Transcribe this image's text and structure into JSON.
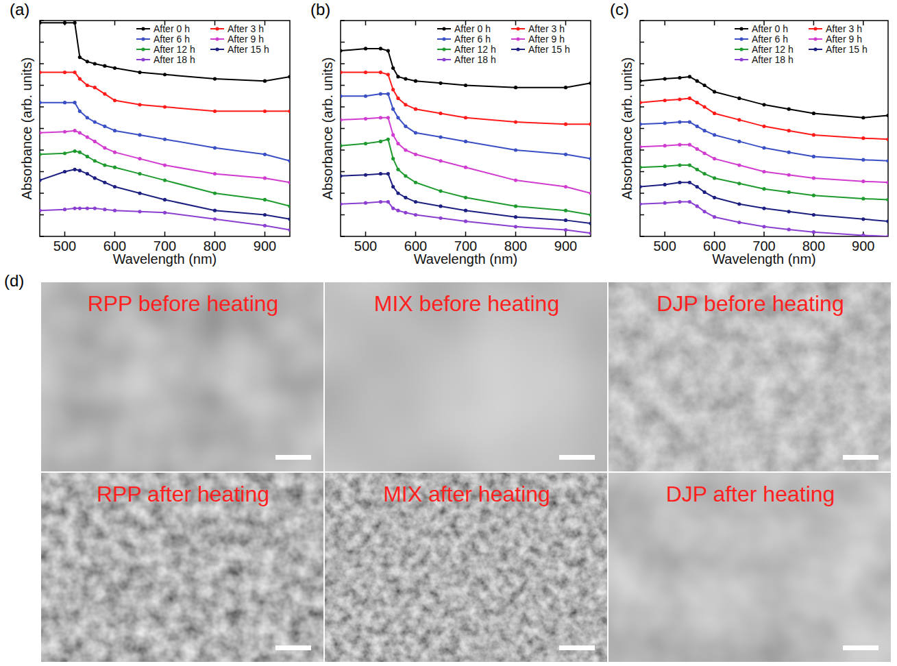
{
  "chart_data": [
    {
      "type": "line",
      "title": "(a)",
      "x_label": "Wavelength (nm)",
      "y_label": "Absorbance (arb. units)",
      "xlim": [
        450,
        950
      ],
      "xticks": [
        500,
        600,
        700,
        800,
        900
      ],
      "ylim": [
        0,
        10
      ],
      "yticks": [
        0,
        1,
        2,
        3,
        4,
        5,
        6,
        7,
        8,
        9,
        10
      ],
      "tick_labels": "x",
      "legend": "top-right",
      "marker": "circle",
      "x": [
        450,
        500,
        520,
        530,
        545,
        560,
        580,
        600,
        650,
        700,
        800,
        900,
        950
      ],
      "series": [
        {
          "name": "After 0 h",
          "color": "#000000",
          "values": [
            9.9,
            9.9,
            9.9,
            8.3,
            8.1,
            8.0,
            7.9,
            7.8,
            7.6,
            7.5,
            7.3,
            7.2,
            7.4
          ]
        },
        {
          "name": "After 3 h",
          "color": "#ff1a1a",
          "values": [
            7.6,
            7.6,
            7.6,
            7.3,
            7.0,
            6.9,
            6.6,
            6.3,
            6.1,
            6.0,
            5.8,
            5.8,
            5.8
          ]
        },
        {
          "name": "After 6 h",
          "color": "#3a4fc4",
          "values": [
            6.2,
            6.2,
            6.2,
            5.8,
            5.5,
            5.3,
            5.1,
            4.9,
            4.7,
            4.5,
            4.1,
            3.8,
            3.5
          ]
        },
        {
          "name": "After 9 h",
          "color": "#d03ccf",
          "values": [
            4.8,
            4.85,
            4.9,
            4.8,
            4.6,
            4.4,
            4.1,
            3.9,
            3.6,
            3.3,
            2.9,
            2.7,
            2.5
          ]
        },
        {
          "name": "After 12 h",
          "color": "#1f9a2e",
          "values": [
            3.8,
            3.85,
            3.95,
            3.9,
            3.7,
            3.5,
            3.3,
            3.2,
            2.9,
            2.6,
            2.0,
            1.7,
            1.4
          ]
        },
        {
          "name": "After 15 h",
          "color": "#1c1f80",
          "values": [
            2.6,
            3.0,
            3.1,
            3.05,
            2.9,
            2.7,
            2.5,
            2.3,
            2.0,
            1.7,
            1.2,
            1.0,
            0.8
          ]
        },
        {
          "name": "After 18 h",
          "color": "#8a3fd0",
          "values": [
            1.2,
            1.25,
            1.3,
            1.3,
            1.3,
            1.3,
            1.25,
            1.2,
            1.15,
            1.1,
            0.8,
            0.5,
            0.3
          ]
        }
      ]
    },
    {
      "type": "line",
      "title": "(b)",
      "x_label": "Wavelength (nm)",
      "y_label": "Absorbance (arb. units)",
      "xlim": [
        450,
        950
      ],
      "xticks": [
        500,
        600,
        700,
        800,
        900
      ],
      "ylim": [
        0,
        10
      ],
      "yticks": [
        0,
        1,
        2,
        3,
        4,
        5,
        6,
        7,
        8,
        9,
        10
      ],
      "tick_labels": "x",
      "legend": "top-right",
      "marker": "circle",
      "x": [
        450,
        500,
        530,
        545,
        555,
        565,
        580,
        600,
        650,
        700,
        800,
        900,
        950
      ],
      "series": [
        {
          "name": "After 0 h",
          "color": "#000000",
          "values": [
            8.6,
            8.7,
            8.7,
            8.6,
            7.8,
            7.4,
            7.3,
            7.2,
            7.1,
            7.0,
            6.9,
            6.9,
            7.1
          ]
        },
        {
          "name": "After 3 h",
          "color": "#ff1a1a",
          "values": [
            7.6,
            7.6,
            7.6,
            7.5,
            6.8,
            6.4,
            6.1,
            5.9,
            5.7,
            5.5,
            5.3,
            5.2,
            5.2
          ]
        },
        {
          "name": "After 6 h",
          "color": "#3a4fc4",
          "values": [
            6.5,
            6.5,
            6.6,
            6.6,
            5.9,
            5.5,
            5.1,
            4.8,
            4.6,
            4.4,
            4.0,
            3.8,
            3.6
          ]
        },
        {
          "name": "After 9 h",
          "color": "#d03ccf",
          "values": [
            5.4,
            5.45,
            5.5,
            5.5,
            4.7,
            4.3,
            4.0,
            3.8,
            3.5,
            3.2,
            2.6,
            2.3,
            2.0
          ]
        },
        {
          "name": "After 12 h",
          "color": "#1f9a2e",
          "values": [
            4.2,
            4.3,
            4.4,
            4.5,
            3.6,
            3.1,
            2.8,
            2.5,
            2.1,
            1.8,
            1.4,
            1.2,
            1.0
          ]
        },
        {
          "name": "After 15 h",
          "color": "#1c1f80",
          "values": [
            2.8,
            2.85,
            2.9,
            2.9,
            2.3,
            2.0,
            1.8,
            1.6,
            1.4,
            1.2,
            0.9,
            0.75,
            0.6
          ]
        },
        {
          "name": "After 18 h",
          "color": "#8a3fd0",
          "values": [
            1.5,
            1.55,
            1.6,
            1.6,
            1.3,
            1.2,
            1.1,
            1.0,
            0.85,
            0.7,
            0.45,
            0.3,
            0.15
          ]
        }
      ]
    },
    {
      "type": "line",
      "title": "(c)",
      "x_label": "Wavelength (nm)",
      "y_label": "Absorbance (arb. units)",
      "xlim": [
        450,
        950
      ],
      "xticks": [
        500,
        600,
        700,
        800,
        900
      ],
      "ylim": [
        0,
        10
      ],
      "yticks": [
        0,
        1,
        2,
        3,
        4,
        5,
        6,
        7,
        8,
        9,
        10
      ],
      "tick_labels": "x",
      "legend": "top-right",
      "marker": "circle",
      "x": [
        450,
        500,
        530,
        550,
        565,
        580,
        600,
        650,
        700,
        750,
        800,
        900,
        950
      ],
      "series": [
        {
          "name": "After 0 h",
          "color": "#000000",
          "values": [
            7.2,
            7.3,
            7.35,
            7.4,
            7.2,
            7.0,
            6.7,
            6.4,
            6.1,
            5.9,
            5.7,
            5.5,
            5.6
          ]
        },
        {
          "name": "After 3 h",
          "color": "#ff1a1a",
          "values": [
            6.2,
            6.3,
            6.35,
            6.4,
            6.2,
            6.0,
            5.7,
            5.4,
            5.1,
            4.9,
            4.7,
            4.55,
            4.5
          ]
        },
        {
          "name": "After 6 h",
          "color": "#3a4fc4",
          "values": [
            5.2,
            5.25,
            5.3,
            5.3,
            5.1,
            4.9,
            4.7,
            4.4,
            4.1,
            3.9,
            3.7,
            3.55,
            3.5
          ]
        },
        {
          "name": "After 9 h",
          "color": "#d03ccf",
          "values": [
            4.15,
            4.2,
            4.25,
            4.25,
            4.05,
            3.85,
            3.6,
            3.3,
            3.0,
            2.85,
            2.7,
            2.55,
            2.5
          ]
        },
        {
          "name": "After 12 h",
          "color": "#1f9a2e",
          "values": [
            3.2,
            3.25,
            3.3,
            3.3,
            3.1,
            2.9,
            2.7,
            2.45,
            2.2,
            2.05,
            1.9,
            1.75,
            1.7
          ]
        },
        {
          "name": "After 15 h",
          "color": "#1c1f80",
          "values": [
            2.3,
            2.4,
            2.5,
            2.5,
            2.3,
            2.05,
            1.8,
            1.5,
            1.3,
            1.15,
            1.0,
            0.8,
            0.7
          ]
        },
        {
          "name": "After 18 h",
          "color": "#8a3fd0",
          "values": [
            1.5,
            1.55,
            1.6,
            1.6,
            1.4,
            1.15,
            0.9,
            0.65,
            0.45,
            0.32,
            0.2,
            0.05,
            0.0
          ]
        }
      ]
    }
  ],
  "figure_d": {
    "label": "(d)",
    "images": [
      {
        "label": "RPP before heating"
      },
      {
        "label": "MIX before heating"
      },
      {
        "label": "DJP before heating"
      },
      {
        "label": "RPP after heating"
      },
      {
        "label": "MIX after heating"
      },
      {
        "label": "DJP after heating"
      }
    ]
  }
}
